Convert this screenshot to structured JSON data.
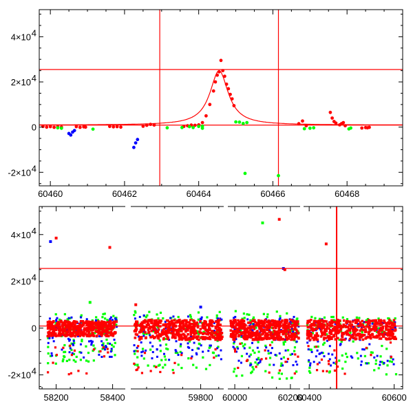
{
  "chart_data": [
    {
      "type": "scatter",
      "panel": "top",
      "title": "",
      "xlabel": "",
      "ylabel": "",
      "xlim": [
        60459.7,
        60469.5
      ],
      "ylim": [
        -26000,
        52000
      ],
      "x_ticks": [
        {
          "value": 60460,
          "label": "60460"
        },
        {
          "value": 60462,
          "label": "60462"
        },
        {
          "value": 60464,
          "label": "60464"
        },
        {
          "value": 60466,
          "label": "60466"
        },
        {
          "value": 60468,
          "label": "60468"
        }
      ],
      "y_ticks": [
        {
          "value": 40000,
          "mantissa": "4×10",
          "exp": "4"
        },
        {
          "value": 20000,
          "mantissa": "2×10",
          "exp": "4"
        },
        {
          "value": 0,
          "mantissa": "0",
          "exp": ""
        },
        {
          "value": -20000,
          "mantissa": "-2×10",
          "exp": "4"
        }
      ],
      "hlines": [
        25500,
        900
      ],
      "vlines": [
        60462.95,
        60466.15
      ],
      "model_curve": {
        "color": "#ff0000",
        "baseline": 900,
        "peak_x": 60464.55,
        "peak_y": 25000,
        "width": 0.3
      },
      "series": [
        {
          "color": "#ff0000",
          "points": [
            [
              60459.8,
              300
            ],
            [
              60459.9,
              0
            ],
            [
              60460.0,
              200
            ],
            [
              60460.1,
              -100
            ],
            [
              60460.2,
              100
            ],
            [
              60460.3,
              0
            ],
            [
              60460.7,
              200
            ],
            [
              60460.8,
              -100
            ],
            [
              60460.9,
              100
            ],
            [
              60460.95,
              0
            ],
            [
              60461.6,
              300
            ],
            [
              60461.7,
              100
            ],
            [
              60461.8,
              200
            ],
            [
              60461.9,
              0
            ],
            [
              60462.5,
              400
            ],
            [
              60462.6,
              800
            ],
            [
              60462.7,
              1200
            ],
            [
              60462.8,
              900
            ],
            [
              60463.6,
              300
            ],
            [
              60463.7,
              600
            ],
            [
              60463.8,
              900
            ],
            [
              60463.9,
              800
            ],
            [
              60464.0,
              1000
            ],
            [
              60464.1,
              2000
            ],
            [
              60464.2,
              5000
            ],
            [
              60464.3,
              10000
            ],
            [
              60464.4,
              16000
            ],
            [
              60464.45,
              20000
            ],
            [
              60464.5,
              23000
            ],
            [
              60464.55,
              24500
            ],
            [
              60464.6,
              29500
            ],
            [
              60464.65,
              25000
            ],
            [
              60464.7,
              22500
            ],
            [
              60464.75,
              19000
            ],
            [
              60464.8,
              17000
            ],
            [
              60464.85,
              14500
            ],
            [
              60464.9,
              12500
            ],
            [
              60464.95,
              9500
            ],
            [
              60466.7,
              1500
            ],
            [
              60466.8,
              2700
            ],
            [
              60466.9,
              600
            ],
            [
              60467.55,
              6500
            ],
            [
              60467.6,
              4000
            ],
            [
              60467.65,
              2500
            ],
            [
              60467.7,
              1800
            ],
            [
              60467.8,
              1000
            ],
            [
              60467.85,
              1500
            ],
            [
              60467.9,
              2000
            ],
            [
              60467.95,
              600
            ],
            [
              60468.4,
              -400
            ],
            [
              60468.5,
              -200
            ],
            [
              60468.55,
              -300
            ],
            [
              60468.6,
              -100
            ]
          ]
        },
        {
          "color": "#00ff00",
          "points": [
            [
              60460.2,
              -300
            ],
            [
              60460.3,
              -500
            ],
            [
              60461.15,
              -900
            ],
            [
              60463.15,
              -300
            ],
            [
              60463.55,
              -200
            ],
            [
              60463.75,
              200
            ],
            [
              60463.85,
              -200
            ],
            [
              60464.0,
              300
            ],
            [
              60464.1,
              400
            ],
            [
              60464.1,
              -500
            ],
            [
              60465.0,
              2300
            ],
            [
              60465.1,
              2200
            ],
            [
              60465.2,
              1600
            ],
            [
              60465.3,
              2000
            ],
            [
              60465.25,
              -20500
            ],
            [
              60466.15,
              -21500
            ],
            [
              60466.85,
              -700
            ],
            [
              60467.0,
              -500
            ],
            [
              60467.1,
              -300
            ],
            [
              60468.05,
              -800
            ],
            [
              60468.1,
              -400
            ]
          ]
        },
        {
          "color": "#0000ff",
          "points": [
            [
              60460.5,
              -2800
            ],
            [
              60460.55,
              -3500
            ],
            [
              60460.6,
              -2200
            ],
            [
              60460.65,
              -1500
            ],
            [
              60462.25,
              -9000
            ],
            [
              60462.3,
              -7000
            ],
            [
              60462.35,
              -5500
            ]
          ]
        }
      ]
    },
    {
      "type": "scatter",
      "panel": "bottom",
      "title": "",
      "xlabel": "",
      "ylabel": "",
      "xlim_segments": [
        [
          58140,
          58440
        ],
        [
          59610,
          59860
        ],
        [
          59980,
          60230
        ],
        [
          60390,
          60620
        ]
      ],
      "ylim": [
        -26000,
        52000
      ],
      "x_ticks": [
        {
          "value": 58200,
          "label": "58200"
        },
        {
          "value": 58400,
          "label": "58400"
        },
        {
          "value": 59800,
          "label": "59800"
        },
        {
          "value": 60000,
          "label": "60000"
        },
        {
          "value": 60200,
          "label": "60200"
        },
        {
          "value": 60400,
          "label": "60400"
        },
        {
          "value": 60600,
          "label": "60600"
        }
      ],
      "y_ticks": [
        {
          "value": 40000,
          "mantissa": "4×10",
          "exp": "4"
        },
        {
          "value": 20000,
          "mantissa": "2×10",
          "exp": "4"
        },
        {
          "value": 0,
          "mantissa": "0",
          "exp": ""
        },
        {
          "value": -20000,
          "mantissa": "-2×10",
          "exp": "4"
        }
      ],
      "hlines": [
        25500,
        900
      ],
      "vlines": [
        60464.6
      ],
      "outlier_points": [
        {
          "color": "#0000ff",
          "x": 58180,
          "y": 37000
        },
        {
          "color": "#ff0000",
          "x": 58200,
          "y": 38500
        },
        {
          "color": "#ff0000",
          "x": 58390,
          "y": 34500
        },
        {
          "color": "#00ff00",
          "x": 60100,
          "y": 45000
        },
        {
          "color": "#ff0000",
          "x": 60160,
          "y": 46500
        },
        {
          "color": "#0000ff",
          "x": 60175,
          "y": 25500
        },
        {
          "color": "#ff0000",
          "x": 60180,
          "y": 25000
        },
        {
          "color": "#ff0000",
          "x": 60440,
          "y": 36000
        },
        {
          "color": "#0000ff",
          "x": 59800,
          "y": 9000
        },
        {
          "color": "#00ff00",
          "x": 58320,
          "y": 11000
        },
        {
          "color": "#ff0000",
          "x": 59620,
          "y": 10000
        }
      ],
      "band_segments": [
        {
          "x_range": [
            58170,
            58415
          ],
          "red_spread": [
            -3500,
            3000
          ],
          "green_range": [
            -17000,
            11000
          ],
          "blue_range": [
            -16000,
            10000
          ]
        },
        {
          "x_range": [
            59615,
            59860
          ],
          "red_spread": [
            -5000,
            3500
          ],
          "green_range": [
            -20000,
            13000
          ],
          "blue_range": [
            -17000,
            12000
          ]
        },
        {
          "x_range": [
            59985,
            60230
          ],
          "red_spread": [
            -5000,
            3500
          ],
          "green_range": [
            -25000,
            13000
          ],
          "blue_range": [
            -20000,
            10000
          ]
        },
        {
          "x_range": [
            60395,
            60605
          ],
          "red_spread": [
            -5000,
            3500
          ],
          "green_range": [
            -22000,
            9000
          ],
          "blue_range": [
            -20000,
            8000
          ]
        }
      ]
    }
  ]
}
